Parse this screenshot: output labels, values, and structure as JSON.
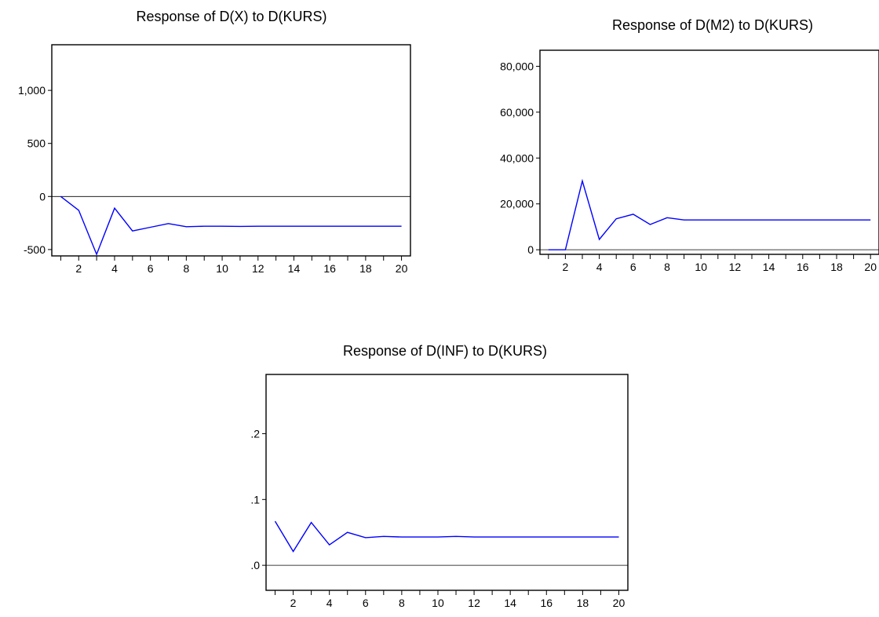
{
  "colors": {
    "series": "#0000ff",
    "axes": "#000000",
    "background": "#ffffff"
  },
  "chart_data": [
    {
      "type": "line",
      "title": "Response of D(X) to D(KURS)",
      "xlabel": "",
      "ylabel": "",
      "x": [
        1,
        2,
        3,
        4,
        5,
        6,
        7,
        8,
        9,
        10,
        11,
        12,
        13,
        14,
        15,
        16,
        17,
        18,
        19,
        20
      ],
      "values": [
        0,
        -130,
        -545,
        -110,
        -325,
        -290,
        -255,
        -285,
        -280,
        -280,
        -282,
        -280,
        -280,
        -280,
        -280,
        -280,
        -280,
        -280,
        -280,
        -280
      ],
      "xlim": [
        0.5,
        20.5
      ],
      "ylim": [
        -560,
        1430
      ],
      "yticks": [
        -500,
        0,
        500,
        1000
      ],
      "ytick_labels": [
        "-500",
        "0",
        "500",
        "1,000"
      ],
      "xticks": [
        2,
        4,
        6,
        8,
        10,
        12,
        14,
        16,
        18,
        20
      ],
      "xtick_labels": [
        "2",
        "4",
        "6",
        "8",
        "10",
        "12",
        "14",
        "16",
        "18",
        "20"
      ],
      "zero_line": true,
      "grid": false,
      "legend": "none"
    },
    {
      "type": "line",
      "title": "Response of D(M2) to D(KURS)",
      "xlabel": "",
      "ylabel": "",
      "x": [
        1,
        2,
        3,
        4,
        5,
        6,
        7,
        8,
        9,
        10,
        11,
        12,
        13,
        14,
        15,
        16,
        17,
        18,
        19,
        20
      ],
      "values": [
        0,
        0,
        30000,
        4500,
        13500,
        15500,
        11000,
        14000,
        13000,
        13000,
        13000,
        13000,
        13000,
        13000,
        13000,
        13000,
        13000,
        13000,
        13000,
        13000
      ],
      "xlim": [
        0.5,
        20.5
      ],
      "ylim": [
        -2000,
        87000
      ],
      "yticks": [
        0,
        20000,
        40000,
        60000,
        80000
      ],
      "ytick_labels": [
        "0",
        "20,000",
        "40,000",
        "60,000",
        "80,000"
      ],
      "xticks": [
        2,
        4,
        6,
        8,
        10,
        12,
        14,
        16,
        18,
        20
      ],
      "xtick_labels": [
        "2",
        "4",
        "6",
        "8",
        "10",
        "12",
        "14",
        "16",
        "18",
        "20"
      ],
      "zero_line": true,
      "grid": false,
      "legend": "none"
    },
    {
      "type": "line",
      "title": "Response of D(INF) to D(KURS)",
      "xlabel": "",
      "ylabel": "",
      "x": [
        1,
        2,
        3,
        4,
        5,
        6,
        7,
        8,
        9,
        10,
        11,
        12,
        13,
        14,
        15,
        16,
        17,
        18,
        19,
        20
      ],
      "values": [
        0.067,
        0.021,
        0.065,
        0.031,
        0.05,
        0.042,
        0.044,
        0.043,
        0.043,
        0.043,
        0.044,
        0.043,
        0.043,
        0.043,
        0.043,
        0.043,
        0.043,
        0.043,
        0.043,
        0.043
      ],
      "xlim": [
        0.5,
        20.5
      ],
      "ylim": [
        -0.038,
        0.29
      ],
      "yticks": [
        0,
        0.1,
        0.2
      ],
      "ytick_labels": [
        ".0",
        ".1",
        ".2"
      ],
      "xticks": [
        2,
        4,
        6,
        8,
        10,
        12,
        14,
        16,
        18,
        20
      ],
      "xtick_labels": [
        "2",
        "4",
        "6",
        "8",
        "10",
        "12",
        "14",
        "16",
        "18",
        "20"
      ],
      "zero_line": true,
      "grid": false,
      "legend": "none"
    }
  ]
}
